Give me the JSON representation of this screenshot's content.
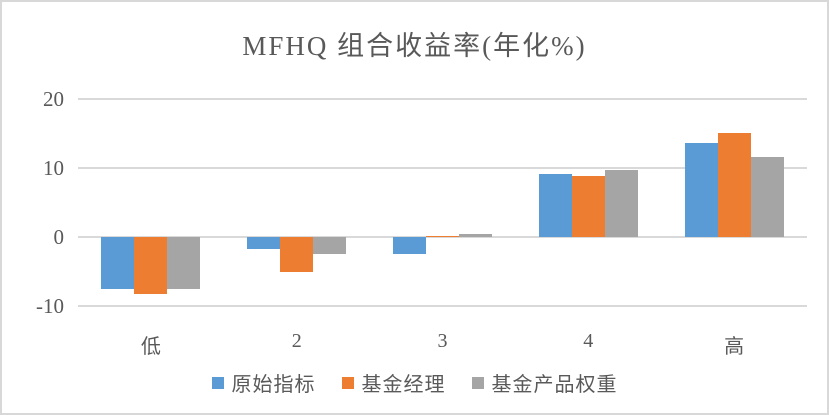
{
  "chart_data": {
    "type": "bar",
    "title": "MFHQ 组合收益率(年化%)",
    "categories": [
      "低",
      "2",
      "3",
      "4",
      "高"
    ],
    "series": [
      {
        "name": "原始指标",
        "color": "#5B9BD5",
        "values": [
          -7.5,
          -1.7,
          -2.5,
          9.2,
          13.6
        ]
      },
      {
        "name": "基金经理",
        "color": "#ED7D31",
        "values": [
          -8.3,
          -5.1,
          0.1,
          8.8,
          15.1
        ]
      },
      {
        "name": "基金产品权重",
        "color": "#A5A5A5",
        "values": [
          -7.5,
          -2.5,
          0.5,
          9.7,
          11.6
        ]
      }
    ],
    "xlabel": "",
    "ylabel": "",
    "y_axis": {
      "min": -10,
      "max": 20,
      "ticks": [
        20,
        10,
        0,
        -10
      ]
    },
    "grid": true,
    "legend_position": "bottom",
    "colors": {
      "gridline": "#D9D9D9",
      "text": "#595959",
      "background": "#FFFFFF",
      "frame_border": "#D8D8D8"
    }
  }
}
